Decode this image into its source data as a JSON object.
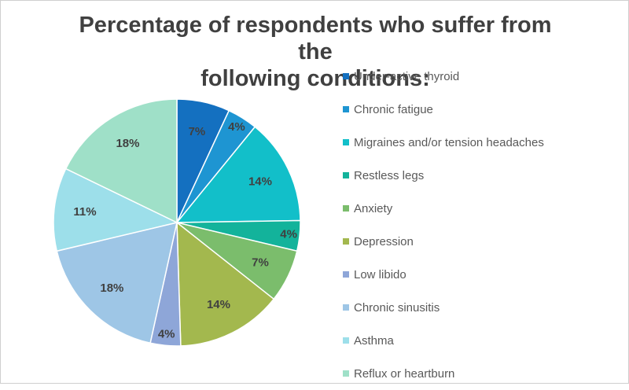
{
  "chart_data": {
    "type": "pie",
    "title_lines": [
      "Percentage of respondents who suffer from the",
      "following conditions:"
    ],
    "categories": [
      "Under-active thyroid",
      "Chronic fatigue",
      "Migraines and/or tension headaches",
      "Restless legs",
      "Anxiety",
      "Depression",
      "Low libido",
      "Chronic sinusitis",
      "Asthma",
      "Reflux or heartburn"
    ],
    "values": [
      7,
      4,
      14,
      4,
      7,
      14,
      4,
      18,
      11,
      18
    ],
    "labels": [
      "7%",
      "4%",
      "14%",
      "4%",
      "7%",
      "14%",
      "4%",
      "18%",
      "11%",
      "18%"
    ],
    "colors": [
      "#1470c0",
      "#1e95d2",
      "#12bfc9",
      "#13b39b",
      "#7bbd6c",
      "#a3b84e",
      "#8ea6d8",
      "#9ec6e6",
      "#9ddfea",
      "#9fe0c8"
    ],
    "legend_position": "right"
  }
}
